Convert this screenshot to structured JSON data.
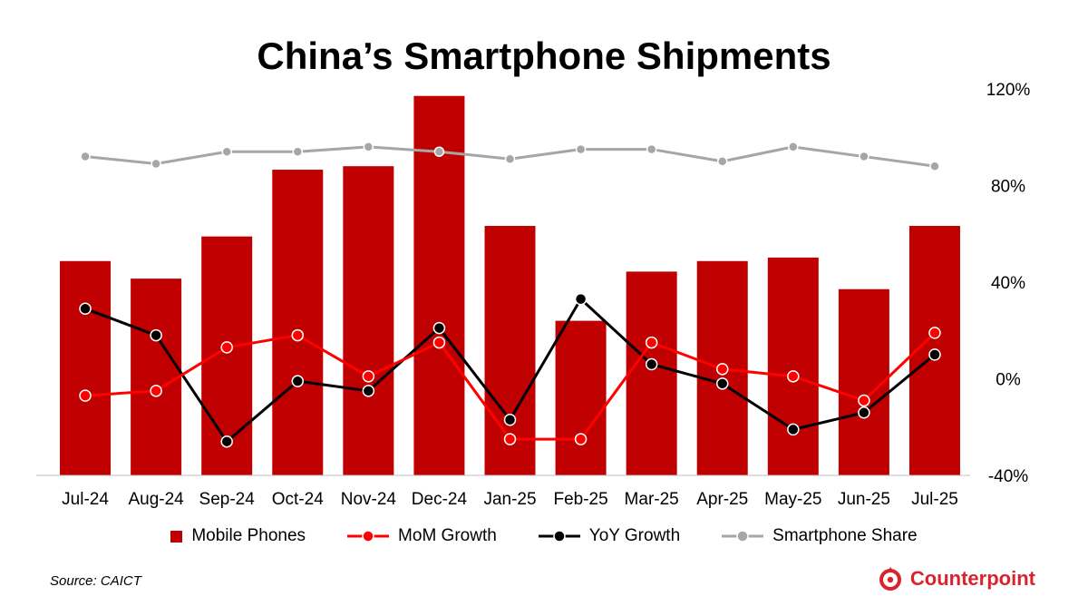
{
  "colors": {
    "bar": "#c00000",
    "mom": "#ff0000",
    "yoy": "#000000",
    "share": "#a6a6a6",
    "brand": "#d9232d"
  },
  "chart_data": {
    "type": "bar",
    "title": "China’s Smartphone Shipments",
    "categories": [
      "Jul-24",
      "Aug-24",
      "Sep-24",
      "Oct-24",
      "Nov-24",
      "Dec-24",
      "Jan-25",
      "Feb-25",
      "Mar-25",
      "Apr-25",
      "May-25",
      "Jun-25",
      "Jul-25"
    ],
    "bar_series": {
      "name": "Mobile Phones",
      "values": [
        6.1,
        5.6,
        6.8,
        8.7,
        8.8,
        10.8,
        7.1,
        4.4,
        5.8,
        6.1,
        6.2,
        5.3,
        7.1
      ],
      "ylim": [
        0,
        11
      ]
    },
    "series": [
      {
        "name": "MoM Growth",
        "axis": "right",
        "values": [
          -7,
          -5,
          13,
          18,
          1,
          15,
          -25,
          -25,
          15,
          4,
          1,
          -9,
          19
        ]
      },
      {
        "name": "YoY Growth",
        "axis": "right",
        "values": [
          29,
          18,
          -26,
          -1,
          -5,
          21,
          -17,
          33,
          6,
          -2,
          -21,
          -14,
          10
        ]
      },
      {
        "name": "Smartphone Share",
        "axis": "right",
        "values": [
          92,
          89,
          94,
          94,
          96,
          94,
          91,
          95,
          95,
          90,
          96,
          92,
          88
        ]
      }
    ],
    "y2lim": [
      -40,
      120
    ],
    "y2_ticks": [
      "120%",
      "80%",
      "40%",
      "0%",
      "-40%"
    ],
    "legend": [
      "Mobile Phones",
      "MoM Growth",
      "YoY Growth",
      "Smartphone Share"
    ],
    "legend_position": "bottom"
  },
  "source": "Source: CAICT",
  "brand": "Counterpoint",
  "watermark": "Counterpoint"
}
